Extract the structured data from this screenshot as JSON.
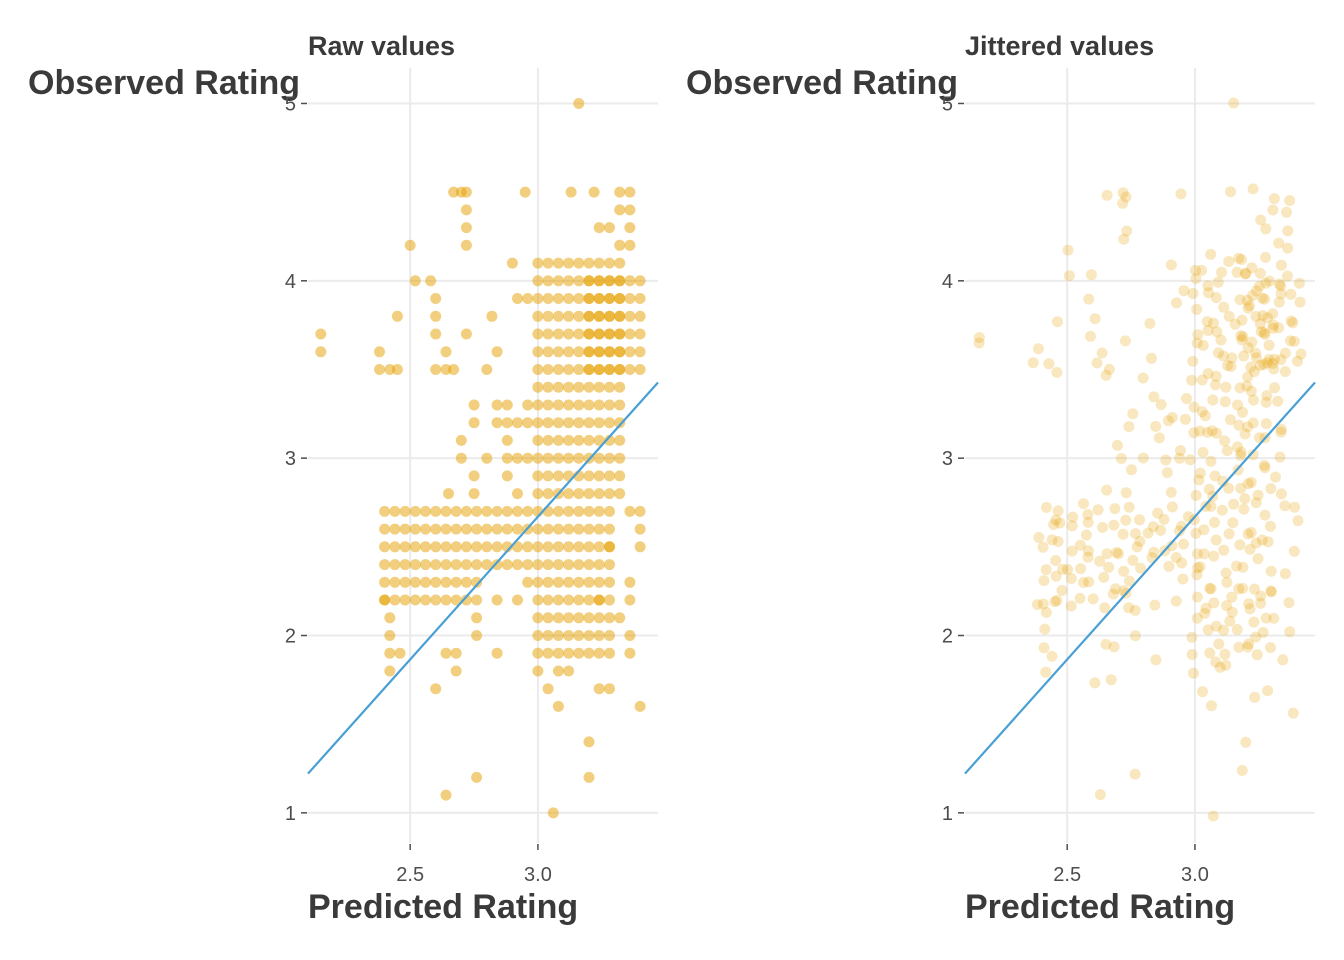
{
  "chart_data": [
    {
      "type": "scatter",
      "title": "Raw values",
      "xlabel": "Predicted Rating",
      "ylabel": "Observed Rating",
      "xlim": [
        2.1,
        3.47
      ],
      "ylim": [
        0.83,
        5.2
      ],
      "x_ticks": [
        2.5,
        3.0
      ],
      "x_tick_labels": [
        "2.5",
        "3.0"
      ],
      "y_ticks": [
        1,
        2,
        3,
        4,
        5
      ],
      "y_tick_labels": [
        "1",
        "2",
        "3",
        "4",
        "5"
      ],
      "grid": true,
      "point_color": "#E69F00",
      "point_opacity": 0.5,
      "jittered": false,
      "fit_line": {
        "color": "#4A9FD5",
        "intercept": -2.16,
        "slope": 1.61
      },
      "points": [
        [
          2.15,
          3.7
        ],
        [
          2.15,
          3.6
        ],
        [
          2.38,
          3.6
        ],
        [
          2.38,
          3.5
        ],
        [
          2.42,
          3.5
        ],
        [
          2.45,
          3.5
        ],
        [
          2.45,
          3.8
        ],
        [
          2.5,
          4.2
        ],
        [
          2.52,
          4.0
        ],
        [
          2.58,
          4.0
        ],
        [
          2.6,
          3.9
        ],
        [
          2.6,
          3.8
        ],
        [
          2.6,
          3.7
        ],
        [
          2.6,
          3.5
        ],
        [
          2.64,
          3.6
        ],
        [
          2.64,
          3.5
        ],
        [
          2.67,
          4.5
        ],
        [
          2.67,
          3.5
        ],
        [
          2.7,
          4.5
        ],
        [
          2.72,
          4.5
        ],
        [
          2.72,
          4.4
        ],
        [
          2.72,
          4.3
        ],
        [
          2.72,
          4.2
        ],
        [
          2.72,
          3.7
        ],
        [
          2.82,
          3.8
        ],
        [
          2.9,
          4.1
        ],
        [
          2.92,
          3.9
        ],
        [
          2.95,
          4.5
        ],
        [
          2.96,
          3.9
        ],
        [
          2.8,
          3.5
        ],
        [
          2.84,
          3.6
        ],
        [
          2.75,
          3.3
        ],
        [
          2.75,
          3.2
        ],
        [
          2.7,
          3.1
        ],
        [
          2.7,
          3.0
        ],
        [
          2.75,
          2.9
        ],
        [
          2.65,
          2.8
        ],
        [
          2.75,
          2.8
        ],
        [
          2.8,
          3.0
        ],
        [
          2.84,
          3.2
        ],
        [
          2.84,
          3.3
        ],
        [
          2.88,
          3.3
        ],
        [
          2.88,
          3.2
        ],
        [
          2.88,
          3.1
        ],
        [
          2.88,
          3.0
        ],
        [
          2.88,
          2.9
        ],
        [
          2.92,
          3.2
        ],
        [
          2.92,
          3.0
        ],
        [
          2.92,
          2.8
        ],
        [
          2.96,
          3.3
        ],
        [
          2.96,
          3.2
        ],
        [
          2.96,
          3.0
        ],
        [
          2.4,
          2.2
        ],
        [
          2.42,
          2.1
        ],
        [
          2.42,
          2.0
        ],
        [
          2.42,
          1.9
        ],
        [
          2.42,
          1.8
        ],
        [
          2.46,
          1.9
        ],
        [
          2.6,
          1.7
        ],
        [
          2.64,
          1.9
        ],
        [
          2.68,
          1.9
        ],
        [
          2.68,
          1.8
        ],
        [
          2.64,
          1.1
        ],
        [
          2.76,
          1.2
        ],
        [
          2.76,
          2.0
        ],
        [
          2.76,
          2.1
        ],
        [
          2.84,
          1.9
        ],
        [
          2.84,
          2.2
        ],
        [
          2.92,
          2.2
        ],
        [
          2.96,
          2.3
        ],
        [
          3.0,
          1.8
        ],
        [
          3.04,
          1.7
        ],
        [
          3.08,
          1.6
        ],
        [
          3.08,
          1.8
        ],
        [
          3.12,
          1.8
        ],
        [
          3.06,
          1.0
        ],
        [
          3.2,
          1.4
        ],
        [
          3.2,
          1.2
        ],
        [
          3.24,
          1.7
        ],
        [
          3.28,
          1.7
        ],
        [
          3.36,
          1.9
        ],
        [
          3.4,
          1.6
        ],
        [
          3.36,
          2.0
        ],
        [
          3.36,
          2.2
        ],
        [
          3.32,
          2.1
        ],
        [
          3.24,
          2.2
        ],
        [
          3.28,
          2.5
        ],
        [
          3.36,
          2.3
        ],
        [
          3.4,
          2.5
        ],
        [
          3.4,
          2.6
        ],
        [
          3.4,
          2.7
        ],
        [
          3.36,
          2.7
        ],
        [
          3.16,
          5.0
        ],
        [
          3.13,
          4.5
        ],
        [
          3.22,
          4.5
        ],
        [
          3.32,
          4.5
        ],
        [
          3.36,
          4.5
        ],
        [
          3.32,
          4.4
        ],
        [
          3.36,
          4.4
        ],
        [
          3.32,
          4.2
        ],
        [
          3.36,
          4.2
        ],
        [
          3.28,
          4.3
        ],
        [
          3.36,
          4.3
        ],
        [
          3.24,
          4.3
        ]
      ],
      "dense_regions": [
        {
          "x_start": 3.0,
          "x_end": 3.32,
          "x_step": 0.04,
          "y_start": 2.8,
          "y_end": 4.1,
          "y_step": 0.1
        },
        {
          "x_start": 3.0,
          "x_end": 3.28,
          "x_step": 0.04,
          "y_start": 1.9,
          "y_end": 2.7,
          "y_step": 0.1
        },
        {
          "x_start": 3.2,
          "x_end": 3.4,
          "x_step": 0.04,
          "y_start": 3.5,
          "y_end": 4.0,
          "y_step": 0.1
        },
        {
          "x_start": 2.4,
          "x_end": 2.76,
          "x_step": 0.04,
          "y_start": 2.2,
          "y_end": 2.7,
          "y_step": 0.1
        },
        {
          "x_start": 2.8,
          "x_end": 2.96,
          "x_step": 0.04,
          "y_start": 2.4,
          "y_end": 2.7,
          "y_step": 0.1
        }
      ]
    },
    {
      "type": "scatter",
      "title": "Jittered values",
      "xlabel": "Predicted Rating",
      "ylabel": "Observed Rating",
      "xlim": [
        2.1,
        3.47
      ],
      "ylim": [
        0.83,
        5.2
      ],
      "x_ticks": [
        2.5,
        3.0
      ],
      "x_tick_labels": [
        "2.5",
        "3.0"
      ],
      "y_ticks": [
        1,
        2,
        3,
        4,
        5
      ],
      "y_tick_labels": [
        "1",
        "2",
        "3",
        "4",
        "5"
      ],
      "grid": true,
      "point_color": "#E69F00",
      "point_opacity": 0.25,
      "jittered": true,
      "jitter_amount": {
        "x": 0.02,
        "y": 0.05
      },
      "fit_line": {
        "color": "#4A9FD5",
        "intercept": -2.16,
        "slope": 1.61
      },
      "points_source": "Raw values"
    }
  ]
}
